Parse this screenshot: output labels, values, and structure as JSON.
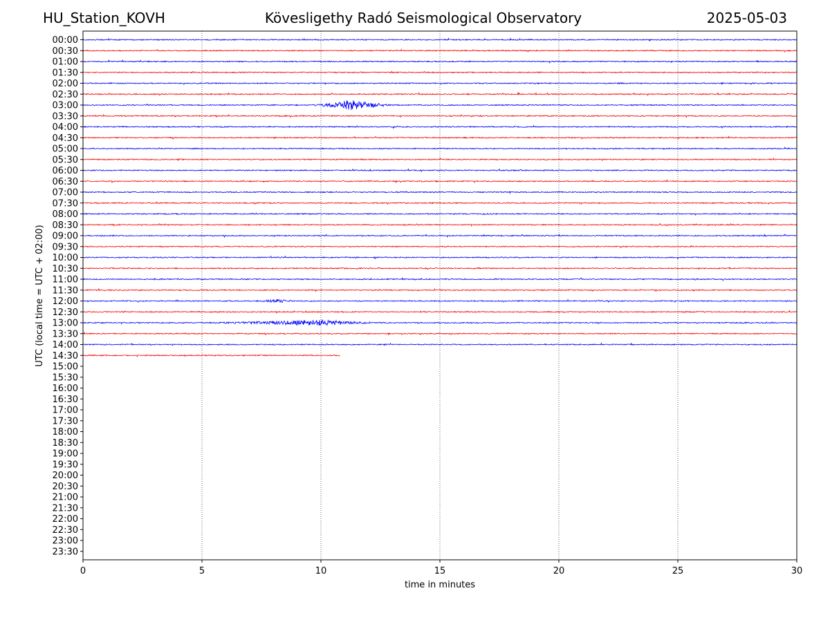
{
  "header": {
    "station": "HU_Station_KOVH",
    "observatory": "Kövesligethy Radó Seismological Observatory",
    "date": "2025-05-03"
  },
  "chart_data": {
    "type": "line",
    "title": "Kövesligethy Radó Seismological Observatory",
    "xlabel": "time in minutes",
    "ylabel": "UTC (local time = UTC + 02:00)",
    "xlim": [
      0,
      30
    ],
    "xticks": [
      0,
      5,
      10,
      15,
      20,
      25,
      30
    ],
    "vgrid_minutes": [
      5,
      10,
      15,
      20,
      25
    ],
    "grid": "vertical dotted",
    "row_labels": [
      "00:00",
      "00:30",
      "01:00",
      "01:30",
      "02:00",
      "02:30",
      "03:00",
      "03:30",
      "04:00",
      "04:30",
      "05:00",
      "05:30",
      "06:00",
      "06:30",
      "07:00",
      "07:30",
      "08:00",
      "08:30",
      "09:00",
      "09:30",
      "10:00",
      "10:30",
      "11:00",
      "11:30",
      "12:00",
      "12:30",
      "13:00",
      "13:30",
      "14:00",
      "14:30",
      "15:00",
      "15:30",
      "16:00",
      "16:30",
      "17:00",
      "17:30",
      "18:00",
      "18:30",
      "19:00",
      "19:30",
      "20:00",
      "20:30",
      "21:00",
      "21:30",
      "22:00",
      "22:30",
      "23:00",
      "23:30"
    ],
    "colors": [
      "#0000ff",
      "#ff0000"
    ],
    "recorded_rows": 30,
    "last_row_end_minutes": 10.8,
    "events": [
      {
        "row": "03:00",
        "start_min": 9.6,
        "end_min": 13.2,
        "peak_min": 11.2,
        "amplitude": 7
      },
      {
        "row": "12:00",
        "start_min": 7.3,
        "end_min": 8.9,
        "peak_min": 8.2,
        "amplitude": 2.5
      },
      {
        "row": "13:00",
        "start_min": 5.2,
        "end_min": 12.5,
        "peak_min": 10.0,
        "amplitude": 4
      }
    ]
  }
}
